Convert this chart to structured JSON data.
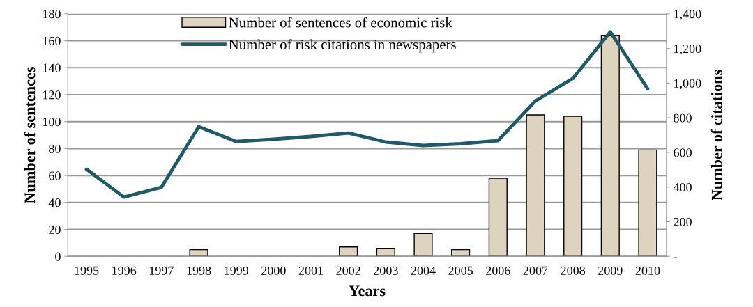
{
  "chart_data": {
    "type": "bar",
    "xlabel": "Years",
    "ylabel": "Number of sentences",
    "y2label": "Number of citations",
    "categories": [
      "1995",
      "1996",
      "1997",
      "1998",
      "1999",
      "2000",
      "2001",
      "2002",
      "2003",
      "2004",
      "2005",
      "2006",
      "2007",
      "2008",
      "2009",
      "2010"
    ],
    "series": [
      {
        "name": "Number of sentences of economic risk",
        "color": "#ddd3bf",
        "values": [
          0,
          0,
          0,
          5,
          0,
          0,
          0,
          7,
          6,
          17,
          5,
          58,
          105,
          104,
          164,
          79
        ]
      },
      {
        "name": "Number of risk citations in newspapers",
        "type": "line",
        "axis": "y2",
        "color": "#215968",
        "values": [
          503,
          342,
          398,
          748,
          663,
          676,
          692,
          712,
          660,
          640,
          650,
          668,
          897,
          1027,
          1296,
          967
        ]
      }
    ],
    "ylim": [
      0,
      180
    ],
    "yticks": [
      0,
      20,
      40,
      60,
      80,
      100,
      120,
      140,
      160,
      180
    ],
    "y2lim": [
      0,
      1400
    ],
    "y2ticks": [
      {
        "value": 0,
        "label": "-"
      },
      {
        "value": 200,
        "label": "200"
      },
      {
        "value": 400,
        "label": "400"
      },
      {
        "value": 600,
        "label": "600"
      },
      {
        "value": 800,
        "label": "800"
      },
      {
        "value": 1000,
        "label": "1,000"
      },
      {
        "value": 1200,
        "label": "1,200"
      },
      {
        "value": 1400,
        "label": "1,400"
      }
    ],
    "grid": "y",
    "legend": "top",
    "marker": "none",
    "line_style": "solid"
  }
}
